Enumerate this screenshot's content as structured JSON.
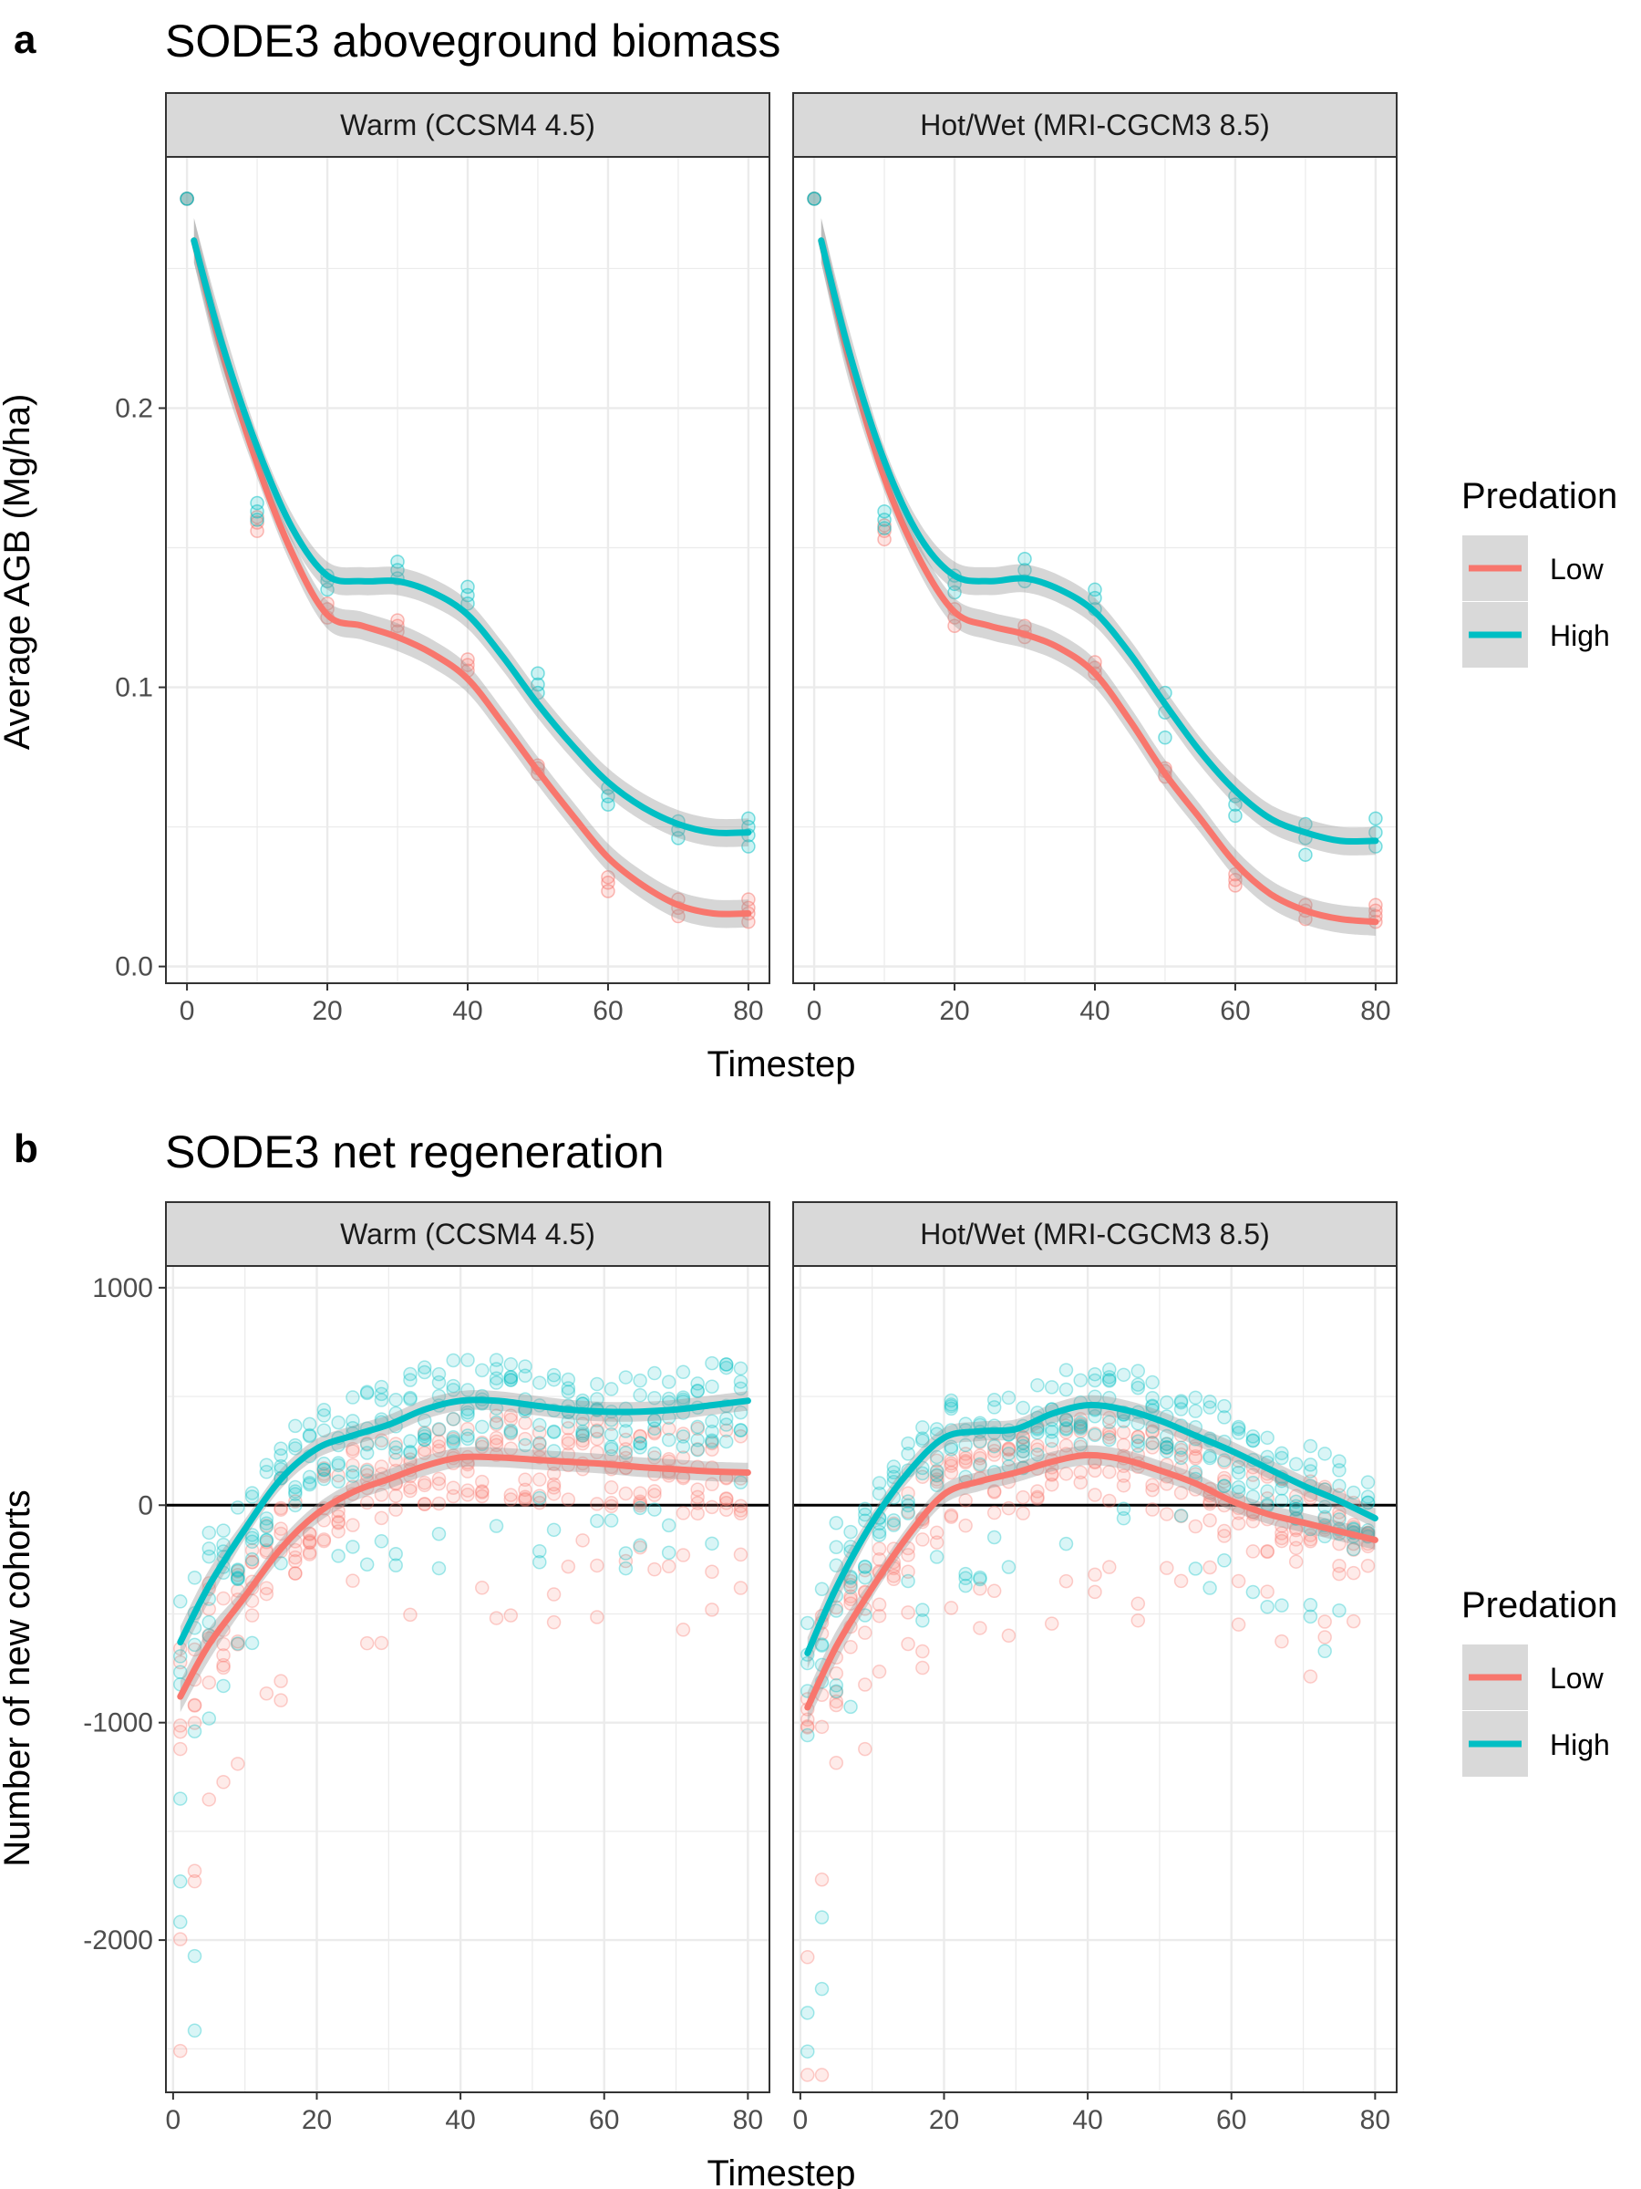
{
  "figure": {
    "section_a": {
      "letter": "a",
      "title": "SODE3 aboveground biomass"
    },
    "section_b": {
      "letter": "b",
      "title": "SODE3 net regeneration"
    },
    "legend_title": "Predation",
    "legend_items": [
      "Low",
      "High"
    ],
    "x_axis_label": "Timestep"
  },
  "colors": {
    "low": "#F8766D",
    "high": "#00BFC4",
    "ribbon": "#999999",
    "strip_fill": "#d9d9d9",
    "grid": "#ebebeb",
    "zero_line": "#000000"
  },
  "chart_data": [
    {
      "type": "scatter",
      "title": "SODE3 aboveground biomass",
      "xlabel": "Timestep",
      "ylabel": "Average AGB (Mg/ha)",
      "facets": [
        "Warm (CCSM4 4.5)",
        "Hot/Wet (MRI-CGCM3 8.5)"
      ],
      "xlim": [
        -3,
        83
      ],
      "ylim": [
        -0.006,
        0.29
      ],
      "xticks": [
        0,
        20,
        40,
        60,
        80
      ],
      "yticks": [
        0,
        0.1,
        0.2
      ],
      "ytick_labels": [
        "0.0",
        "0.1",
        "0.2"
      ],
      "x_points": [
        0,
        10,
        20,
        30,
        40,
        50,
        60,
        70,
        80
      ],
      "series": [
        {
          "name": "Low",
          "facet_points": [
            [
              [
                0.275,
                0.275
              ],
              [
                0.156,
                0.159,
                0.161
              ],
              [
                0.125,
                0.128,
                0.13
              ],
              [
                0.12,
                0.122,
                0.124
              ],
              [
                0.106,
                0.108,
                0.11
              ],
              [
                0.069,
                0.071,
                0.072
              ],
              [
                0.027,
                0.03,
                0.032
              ],
              [
                0.018,
                0.021,
                0.024
              ],
              [
                0.016,
                0.019,
                0.021,
                0.024
              ]
            ],
            [
              [
                0.275,
                0.275
              ],
              [
                0.153,
                0.156,
                0.158
              ],
              [
                0.122,
                0.125,
                0.128
              ],
              [
                0.118,
                0.12,
                0.122
              ],
              [
                0.105,
                0.107,
                0.109
              ],
              [
                0.068,
                0.07,
                0.071
              ],
              [
                0.029,
                0.031,
                0.033
              ],
              [
                0.017,
                0.02,
                0.022
              ],
              [
                0.016,
                0.018,
                0.02,
                0.022
              ]
            ]
          ],
          "smooth_x": [
            1,
            5,
            10,
            15,
            20,
            25,
            30,
            35,
            40,
            45,
            50,
            55,
            60,
            65,
            70,
            75,
            80
          ],
          "facet_smooth": [
            [
              0.26,
              0.22,
              0.18,
              0.148,
              0.126,
              0.122,
              0.118,
              0.112,
              0.103,
              0.087,
              0.07,
              0.054,
              0.039,
              0.029,
              0.022,
              0.019,
              0.019
            ],
            [
              0.26,
              0.217,
              0.175,
              0.146,
              0.127,
              0.122,
              0.119,
              0.114,
              0.105,
              0.088,
              0.069,
              0.053,
              0.037,
              0.026,
              0.02,
              0.017,
              0.016
            ]
          ],
          "ribbon_halfwidth": 0.005
        },
        {
          "name": "High",
          "facet_points": [
            [
              [
                0.275,
                0.275
              ],
              [
                0.16,
                0.163,
                0.166
              ],
              [
                0.135,
                0.138,
                0.14
              ],
              [
                0.139,
                0.142,
                0.145
              ],
              [
                0.13,
                0.133,
                0.136
              ],
              [
                0.098,
                0.101,
                0.105
              ],
              [
                0.058,
                0.061,
                0.064
              ],
              [
                0.046,
                0.049,
                0.052
              ],
              [
                0.043,
                0.047,
                0.05,
                0.053
              ]
            ],
            [
              [
                0.275,
                0.275
              ],
              [
                0.157,
                0.16,
                0.163
              ],
              [
                0.134,
                0.137,
                0.14
              ],
              [
                0.138,
                0.142,
                0.146
              ],
              [
                0.128,
                0.132,
                0.135
              ],
              [
                0.082,
                0.091,
                0.098
              ],
              [
                0.054,
                0.058,
                0.061
              ],
              [
                0.04,
                0.046,
                0.051
              ],
              [
                0.043,
                0.048,
                0.053
              ]
            ]
          ],
          "smooth_x": [
            1,
            5,
            10,
            15,
            20,
            25,
            30,
            35,
            40,
            45,
            50,
            55,
            60,
            65,
            70,
            75,
            80
          ],
          "facet_smooth": [
            [
              0.26,
              0.223,
              0.186,
              0.157,
              0.14,
              0.138,
              0.138,
              0.134,
              0.126,
              0.111,
              0.094,
              0.079,
              0.066,
              0.057,
              0.051,
              0.048,
              0.048
            ],
            [
              0.26,
              0.22,
              0.181,
              0.154,
              0.14,
              0.138,
              0.139,
              0.135,
              0.127,
              0.112,
              0.094,
              0.077,
              0.063,
              0.053,
              0.048,
              0.045,
              0.045
            ]
          ],
          "ribbon_halfwidth": 0.005
        }
      ]
    },
    {
      "type": "scatter",
      "title": "SODE3 net regeneration",
      "xlabel": "Timestep",
      "ylabel": "Number of new cohorts",
      "facets": [
        "Warm (CCSM4 4.5)",
        "Hot/Wet (MRI-CGCM3 8.5)"
      ],
      "xlim": [
        -1,
        83
      ],
      "ylim": [
        -2700,
        1100
      ],
      "xticks": [
        0,
        20,
        40,
        60,
        80
      ],
      "yticks": [
        -2000,
        -1000,
        0,
        1000
      ],
      "ytick_labels": [
        "-2000",
        "-1000",
        "0",
        "1000"
      ],
      "hline": 0,
      "series": [
        {
          "name": "Low",
          "smooth_x": [
            1,
            5,
            10,
            15,
            20,
            25,
            30,
            35,
            40,
            45,
            50,
            55,
            60,
            65,
            70,
            75,
            80
          ],
          "facet_smooth": [
            [
              -880,
              -640,
              -420,
              -200,
              -40,
              60,
              120,
              180,
              220,
              220,
              210,
              200,
              190,
              175,
              165,
              155,
              150
            ],
            [
              -930,
              -650,
              -380,
              -140,
              50,
              110,
              150,
              200,
              230,
              210,
              160,
              100,
              20,
              -40,
              -80,
              -120,
              -160
            ]
          ],
          "ribbon_halfwidth": 45
        },
        {
          "name": "High",
          "smooth_x": [
            1,
            5,
            10,
            15,
            20,
            25,
            30,
            35,
            40,
            45,
            50,
            55,
            60,
            65,
            70,
            75,
            80
          ],
          "facet_smooth": [
            [
              -630,
              -370,
              -110,
              120,
              260,
              320,
              370,
              440,
              480,
              480,
              460,
              440,
              430,
              430,
              440,
              460,
              480
            ],
            [
              -680,
              -380,
              -80,
              150,
              310,
              340,
              350,
              420,
              460,
              440,
              390,
              320,
              250,
              170,
              90,
              20,
              -60
            ]
          ],
          "ribbon_halfwidth": 45
        }
      ]
    }
  ]
}
